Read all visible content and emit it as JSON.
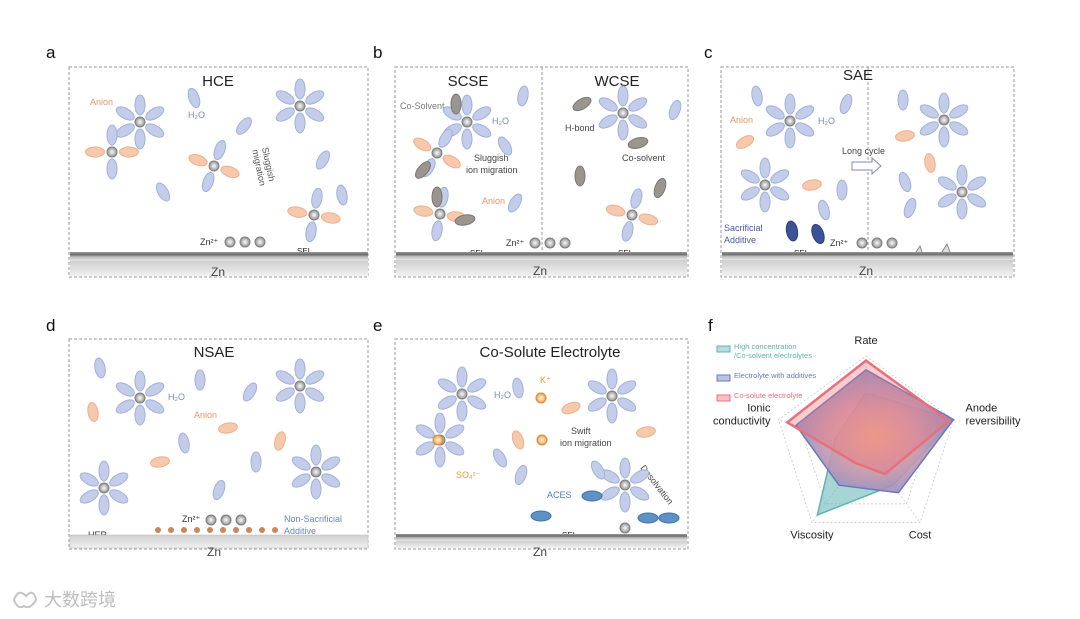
{
  "panels": {
    "a": {
      "letter": "a",
      "title": "HCE",
      "anion": "Anion",
      "water": "H₂O",
      "sluggish": [
        "Sluggish",
        "migration"
      ],
      "zn_ion": "Zn²⁺",
      "sei": "SEI",
      "zn": "Zn"
    },
    "b": {
      "letter": "b",
      "title_left": "SCSE",
      "title_right": "WCSE",
      "cosolvent_left": "Co-Solvent",
      "water": "H₂O",
      "sluggish": [
        "Sluggish",
        "ion migration"
      ],
      "anion": "Anion",
      "hbond": "H-bond",
      "cosolvent_right": "Co-solvent",
      "zn_ion": "Zn²⁺",
      "sei": "SEI",
      "zn": "Zn"
    },
    "c": {
      "letter": "c",
      "title": "SAE",
      "anion": "Anion",
      "water": "H₂O",
      "long_cycle": "Long cycle",
      "sacrificial": [
        "Sacrificial",
        "Additive"
      ],
      "zn_ion": "Zn²⁺",
      "sei": "SEI",
      "zn": "Zn"
    },
    "d": {
      "letter": "d",
      "title": "NSAE",
      "water": "H₂O",
      "anion": "Anion",
      "zn_ion": "Zn²⁺",
      "non_sacrificial": [
        "Non-Sacrificial",
        "Additive"
      ],
      "her": "HER",
      "zn": "Zn"
    },
    "e": {
      "letter": "e",
      "title": "Co-Solute  Electrolyte",
      "water": "H₂O",
      "k_ion": "K⁺",
      "swift": [
        "Swift",
        "ion migration"
      ],
      "so4": "SO₄²⁻",
      "aces": "ACES",
      "desolvation": "Desolvation",
      "sei": "SEI",
      "zn": "Zn"
    },
    "f": {
      "letter": "f",
      "legend": [
        {
          "label": [
            "High concentration",
            "/Co-solvent electrolytes"
          ],
          "color": "#5fb3b3"
        },
        {
          "label": [
            "Electrolyte with additives"
          ],
          "color": "#6b79b8"
        },
        {
          "label": [
            "Co-solute electrolyte"
          ],
          "color": "#e8707c"
        }
      ]
    }
  },
  "chart_data": {
    "type": "radar",
    "axes": [
      "Rate",
      "Anode reversibility",
      "Cost",
      "Viscosity",
      "Ionic conductivity"
    ],
    "axis_labels": [
      [
        "Rate"
      ],
      [
        "Anode",
        "reversibility"
      ],
      [
        "Cost"
      ],
      [
        "Viscosity"
      ],
      [
        "Ionic",
        "conductivity"
      ]
    ],
    "range": [
      0,
      1
    ],
    "series": [
      {
        "name": "High concentration /Co-solvent electrolytes",
        "values": [
          0.6,
          1.0,
          0.5,
          0.9,
          0.35
        ],
        "color": "#5fb3b3"
      },
      {
        "name": "Electrolyte with additives",
        "values": [
          0.85,
          1.0,
          0.6,
          0.5,
          0.8
        ],
        "color": "#6b79b8"
      },
      {
        "name": "Co-solute electrolyte",
        "values": [
          0.95,
          0.95,
          0.35,
          0.2,
          0.9
        ],
        "color": "#e8707c"
      }
    ]
  },
  "watermark": "大数跨境"
}
